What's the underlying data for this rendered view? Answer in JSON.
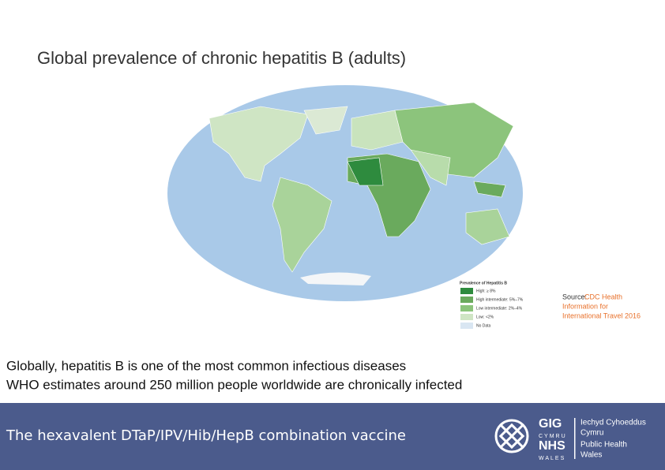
{
  "title": "Global prevalence of chronic hepatitis B  (adults)",
  "legend": {
    "title": "Prevalence of Hepatitis B",
    "items": [
      "High: ≥ 8%",
      "High intermediate: 5%–7%",
      "Low intermediate: 2%–4%",
      "Low: <2%",
      "No Data"
    ]
  },
  "source": {
    "prefix": "Source:",
    "lines": [
      "CDC Health",
      "Information for",
      "International Travel 2016"
    ]
  },
  "body": [
    "Globally, hepatitis B is one of the most common infectious diseases",
    "WHO estimates around 250 million people worldwide are chronically infected"
  ],
  "footer": {
    "text": "The hexavalent DTaP/IPV/Hib/HepB combination vaccine",
    "logo": {
      "gig": "GIG",
      "cymru": "CYMRU",
      "nhs": "NHS",
      "wales": "WALES",
      "org_lines": [
        "Iechyd Cyhoeddus",
        "Cymru",
        "Public Health",
        "Wales"
      ]
    }
  }
}
